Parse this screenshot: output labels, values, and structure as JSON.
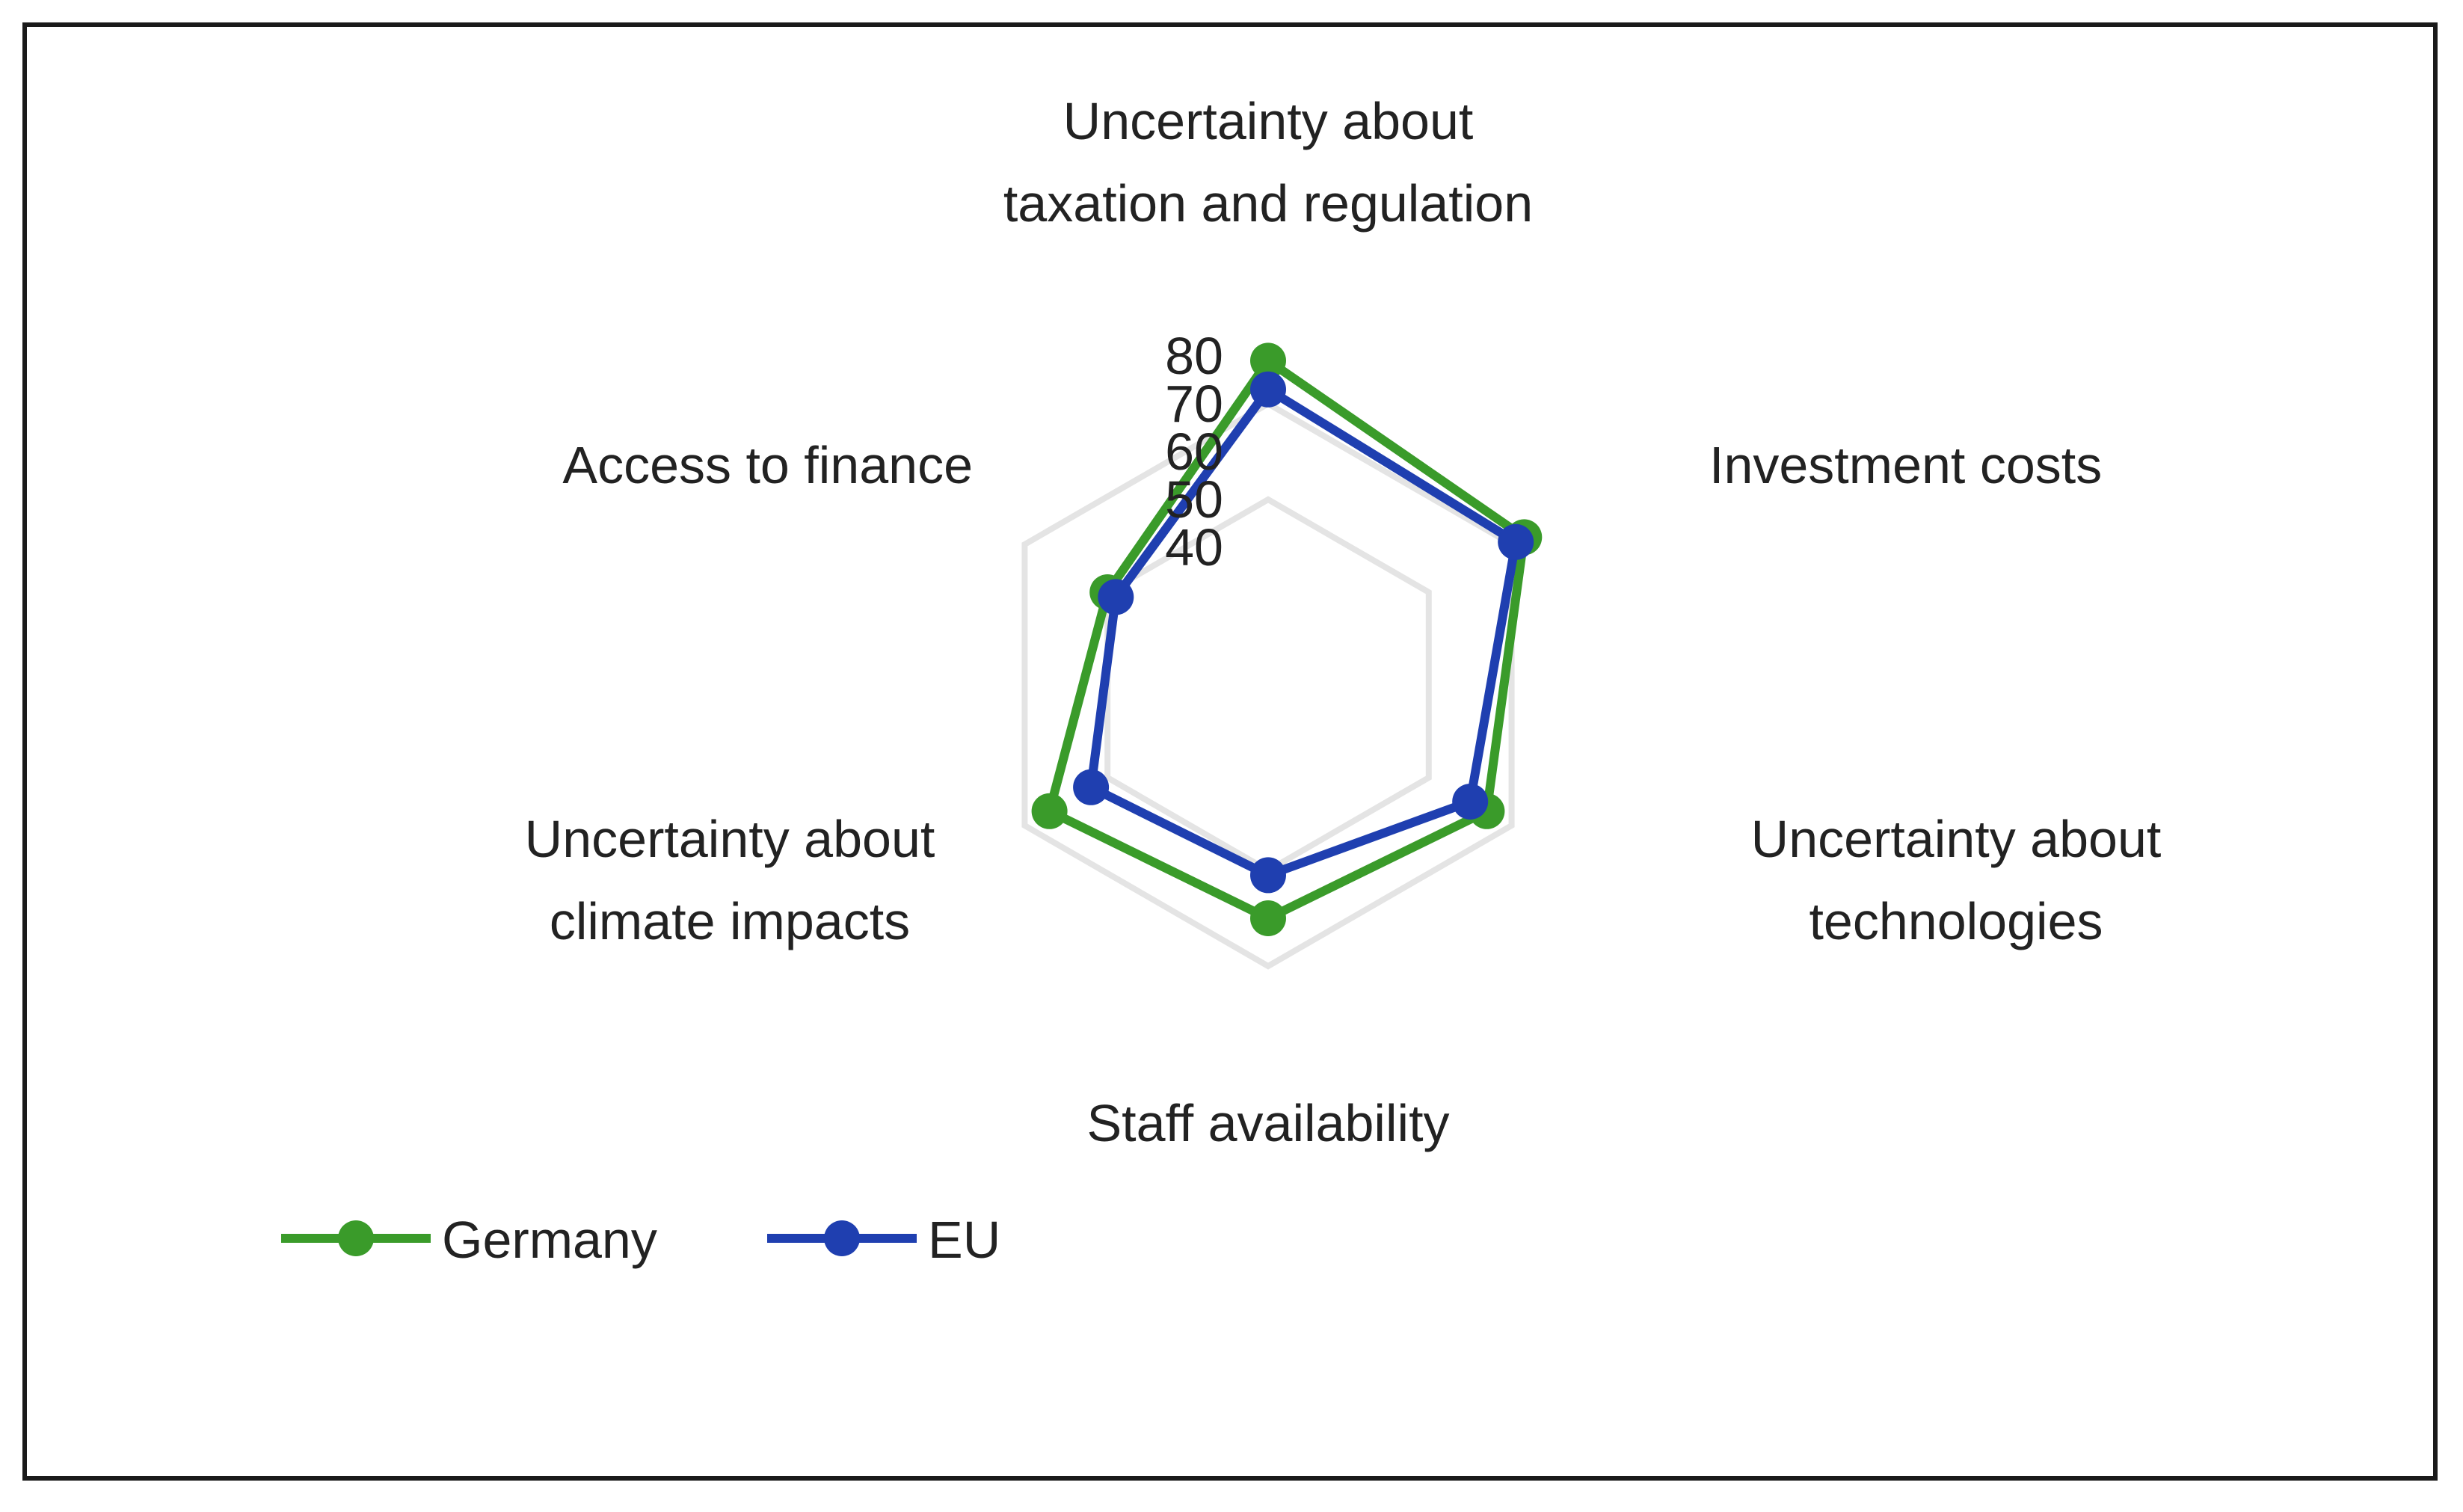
{
  "chart_data": {
    "type": "radar",
    "axes": [
      "Uncertainty about taxation and regulation",
      "Investment costs",
      "Uncertainty about technologies",
      "Staff availability",
      "Uncertainty about climate impacts",
      "Access to finance"
    ],
    "axis_label_lines": [
      [
        "Uncertainty about",
        "taxation and regulation"
      ],
      [
        "Investment costs"
      ],
      [
        "Uncertainty about",
        "technologies"
      ],
      [
        "Staff availability"
      ],
      [
        "Uncertainty about",
        "climate impacts"
      ],
      [
        "Access to finance"
      ]
    ],
    "ticks": [
      "80",
      "70",
      "60",
      "50",
      "40"
    ],
    "tick_values": [
      80,
      70,
      60,
      50,
      40
    ],
    "rlim": [
      30,
      80
    ],
    "gridlines": [
      50,
      70
    ],
    "series": [
      {
        "name": "Germany",
        "color": "#3a9b2a",
        "values": [
          79,
          73,
          64,
          60,
          64,
          50
        ]
      },
      {
        "name": "EU",
        "color": "#1f3fb0",
        "values": [
          73,
          71,
          60,
          51,
          54,
          48
        ]
      }
    ],
    "legend": {
      "placement": "bottom-left"
    },
    "grid_color": "#e4e4e4"
  }
}
